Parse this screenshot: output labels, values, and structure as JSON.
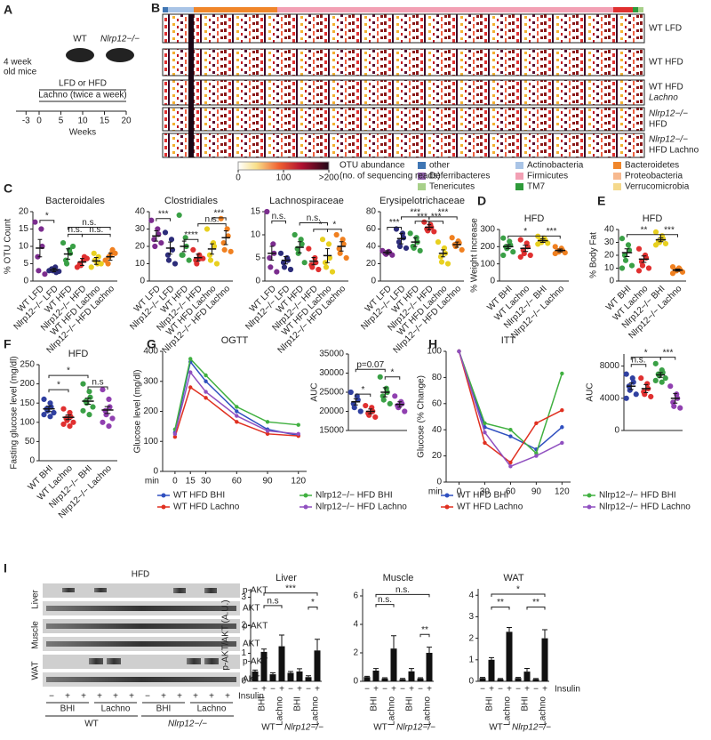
{
  "panel_labels": [
    "A",
    "B",
    "C",
    "D",
    "E",
    "F",
    "G",
    "H",
    "I"
  ],
  "diagram": {
    "age": [
      "4 week",
      "old mice"
    ],
    "strains": [
      "WT",
      "Nlrp12−/−"
    ],
    "diet": "LFD or HFD",
    "treatment": "Lachno (twice a week)",
    "weeks": [
      -3,
      0,
      5,
      10,
      15,
      20
    ],
    "axis_label": "Weeks"
  },
  "heatmap": {
    "rows": [
      [
        "WT LFD"
      ],
      [
        "WT HFD"
      ],
      [
        "WT HFD",
        "Lachno"
      ],
      [
        "Nlrp12−/−",
        "HFD"
      ],
      [
        "Nlrp12−/−",
        "HFD Lachno"
      ]
    ],
    "legend": [
      {
        "name": "other",
        "color": "#3f76b4"
      },
      {
        "name": "Deferribacteres",
        "color": "#8e5ea8"
      },
      {
        "name": "Tenericutes",
        "color": "#a8d08a"
      },
      {
        "name": "Actinobacteria",
        "color": "#a9c4e6"
      },
      {
        "name": "Firmicutes",
        "color": "#f2a0b4"
      },
      {
        "name": "TM7",
        "color": "#2e9a3a"
      },
      {
        "name": "Bacteroidetes",
        "color": "#f0862a"
      },
      {
        "name": "Proteobacteria",
        "color": "#f7b98f"
      },
      {
        "name": "Verrucomicrobia",
        "color": "#f5d98c"
      }
    ],
    "scale_title": "OTU abundance",
    "scale_subtitle": "(no. of sequencing reads)",
    "scale_ticks": [
      0,
      100,
      {
        "value": 200,
        "label": ">200"
      }
    ]
  },
  "blot": {
    "title": "HFD",
    "tissues": [
      "Liver",
      "Muscle",
      "WAT"
    ],
    "bands": [
      "p-AKT",
      "AKT"
    ],
    "insulin": [
      "−",
      "+",
      "+",
      "+",
      "+",
      "+",
      "−",
      "+",
      "+",
      "+",
      "+",
      "+"
    ],
    "treatments": [
      "BHI",
      "Lachno",
      "BHI",
      "Lachno"
    ],
    "genotypes": [
      "WT",
      "Nlrp12−/−"
    ],
    "x_label": "Insulin"
  },
  "chart_data": [
    {
      "type": "dotplot",
      "title": "Bacteroidales",
      "y_label": "% OTU Count",
      "categories": [
        "WT LFD",
        "Nlrp12−/− LFD",
        "WT HFD",
        "Nlrp12−/− HFD",
        "WT HFD Lachno",
        "Nlrp12−/− HFD Lachno"
      ],
      "colors": [
        "#7b2d8e",
        "#2d2d7a",
        "#3aa046",
        "#e03030",
        "#e8d020",
        "#f08020"
      ],
      "values": [
        9.5,
        3.2,
        7.8,
        5.5,
        5.8,
        7
      ],
      "errors": [
        2.5,
        0.5,
        1.5,
        1,
        1,
        1
      ],
      "points": [
        [
          17,
          15,
          10,
          7,
          3,
          2
        ],
        [
          3,
          4,
          2.5,
          3.5,
          3,
          2.8
        ],
        [
          11,
          9,
          8,
          6,
          5,
          10
        ],
        [
          4,
          6,
          7,
          5,
          4.5,
          6.5
        ],
        [
          4,
          5,
          7,
          8,
          6,
          5
        ],
        [
          6,
          8,
          9,
          5,
          7,
          8
        ]
      ],
      "ylim": [
        0,
        20
      ],
      "yticks": [
        0,
        5,
        10,
        15,
        20
      ],
      "annotations": [
        "*",
        "n.s.",
        "n.s.",
        "n.s."
      ]
    },
    {
      "type": "dotplot",
      "title": "Clostridiales",
      "categories": [
        "WT LFD",
        "Nlrp12−/− LFD",
        "WT HFD",
        "Nlrp12−/− HFD",
        "WT HFD Lachno",
        "Nlrp12−/− HFD Lachno"
      ],
      "colors": [
        "#7b2d8e",
        "#2d2d7a",
        "#3aa046",
        "#e03030",
        "#e8d020",
        "#f08020"
      ],
      "values": [
        26,
        19,
        20,
        13.5,
        18.5,
        25
      ],
      "errors": [
        3,
        3.5,
        3,
        2,
        3,
        4
      ],
      "points": [
        [
          35,
          30,
          27,
          24,
          20,
          22
        ],
        [
          28,
          24,
          18,
          15,
          12,
          10
        ],
        [
          38,
          25,
          20,
          15,
          15,
          12
        ],
        [
          18,
          15,
          13,
          12,
          10,
          13
        ],
        [
          30,
          22,
          20,
          15,
          12,
          10
        ],
        [
          36,
          30,
          26,
          22,
          18,
          17
        ]
      ],
      "ylim": [
        0,
        40
      ],
      "yticks": [
        0,
        10,
        20,
        30,
        40
      ],
      "annotations": [
        "***",
        "****",
        "n.s.",
        "***"
      ]
    },
    {
      "type": "dotplot",
      "title": "Lachnospiraceae",
      "categories": [
        "WT LFD",
        "Nlrp12−/− LFD",
        "WT HFD",
        "Nlrp12−/− HFD",
        "WT HFD Lachno",
        "Nlrp12−/− HFD Lachno"
      ],
      "colors": [
        "#7b2d8e",
        "#2d2d7a",
        "#3aa046",
        "#e03030",
        "#e8d020",
        "#f08020"
      ],
      "values": [
        6,
        4.5,
        7.3,
        4.3,
        5.5,
        7.5
      ],
      "errors": [
        1.5,
        0.8,
        1.2,
        0.8,
        1.5,
        1
      ],
      "points": [
        [
          15,
          8,
          6,
          5,
          3,
          2
        ],
        [
          6,
          5,
          4.5,
          4,
          3,
          2.5
        ],
        [
          10,
          9,
          8,
          7,
          6,
          4
        ],
        [
          7,
          5,
          4,
          3.5,
          3,
          2.5
        ],
        [
          9,
          8,
          5,
          4,
          3,
          2
        ],
        [
          10,
          9,
          8,
          7,
          6,
          5
        ]
      ],
      "ylim": [
        0,
        15
      ],
      "yticks": [
        0,
        5,
        10,
        15
      ],
      "annotations": [
        "n.s.",
        "n.s.",
        "*",
        "*"
      ]
    },
    {
      "type": "dotplot",
      "title": "Erysipelotrichaceae",
      "categories": [
        "WT LFD",
        "Nlrp12−/− LFD",
        "WT HFD",
        "Nlrp12−/− HFD",
        "WT HFD Lachno",
        "Nlrp12−/− HFD Lachno"
      ],
      "colors": [
        "#7b2d8e",
        "#2d2d7a",
        "#3aa046",
        "#e03030",
        "#e8d020",
        "#f08020"
      ],
      "values": [
        33,
        49,
        45,
        62,
        32,
        42
      ],
      "errors": [
        2,
        6,
        5,
        3,
        4,
        3
      ],
      "points": [
        [
          35,
          34,
          33,
          32,
          31,
          30
        ],
        [
          60,
          55,
          50,
          45,
          40,
          38
        ],
        [
          55,
          50,
          45,
          40,
          38,
          35
        ],
        [
          68,
          65,
          62,
          60,
          58,
          57
        ],
        [
          45,
          38,
          32,
          28,
          22,
          20
        ],
        [
          50,
          46,
          44,
          42,
          40,
          36
        ]
      ],
      "ylim": [
        0,
        80
      ],
      "yticks": [
        0,
        20,
        40,
        60,
        80
      ],
      "annotations": [
        "***",
        "***",
        "***",
        "***",
        "***"
      ]
    },
    {
      "type": "dotplot",
      "title": "HFD",
      "y_label": "% Weight Increase",
      "categories": [
        "WT BHI",
        "WT Lachno",
        "Nlrp12−/− BHI",
        "Nlrp12−/− Lachno"
      ],
      "colors": [
        "#3aa046",
        "#e03030",
        "#e8d020",
        "#f08020"
      ],
      "values": [
        200,
        190,
        235,
        178
      ],
      "errors": [
        12,
        18,
        10,
        8
      ],
      "points": [
        [
          250,
          230,
          210,
          200,
          190,
          170,
          150
        ],
        [
          240,
          220,
          200,
          180,
          160,
          150,
          140
        ],
        [
          260,
          250,
          240,
          235,
          225,
          220,
          215
        ],
        [
          200,
          190,
          180,
          175,
          170,
          165,
          160
        ]
      ],
      "ylim": [
        0,
        300
      ],
      "yticks": [
        0,
        100,
        200,
        300
      ],
      "annotations": [
        "*",
        "***"
      ]
    },
    {
      "type": "dotplot",
      "title": "HFD",
      "y_label": "% Body Fat",
      "categories": [
        "WT BHI",
        "WT Lachno",
        "Nlrp12−/− BHI",
        "Nlrp12−/− Lachno"
      ],
      "colors": [
        "#3aa046",
        "#e03030",
        "#e8d020",
        "#f08020"
      ],
      "values": [
        22,
        17,
        32,
        8.5
      ],
      "errors": [
        3,
        2.5,
        1.5,
        0.8
      ],
      "points": [
        [
          33,
          28,
          24,
          20,
          16,
          12,
          10
        ],
        [
          25,
          20,
          18,
          15,
          12,
          10,
          8
        ],
        [
          38,
          35,
          33,
          31,
          30,
          29,
          28
        ],
        [
          11,
          10,
          9,
          8.5,
          8,
          7,
          6
        ]
      ],
      "ylim": [
        0,
        40
      ],
      "yticks": [
        0,
        10,
        20,
        30,
        40
      ],
      "annotations": [
        "**",
        "***"
      ]
    },
    {
      "type": "dotplot",
      "title": "HFD",
      "y_label": "Fasting glucose level (mg/dl)",
      "categories": [
        "WT BHI",
        "WT Lachno",
        "Nlrp12−/− BHI",
        "Nlrp12−/− Lachno"
      ],
      "colors": [
        "#3040a0",
        "#e03030",
        "#3aa046",
        "#9040b0"
      ],
      "values": [
        135,
        113,
        155,
        132
      ],
      "errors": [
        7,
        6,
        8,
        9
      ],
      "points": [
        [
          160,
          150,
          140,
          135,
          130,
          125,
          120,
          115
        ],
        [
          135,
          125,
          115,
          110,
          105,
          100,
          95,
          90
        ],
        [
          200,
          180,
          165,
          155,
          150,
          140,
          130,
          120
        ],
        [
          185,
          160,
          140,
          130,
          120,
          110,
          100,
          90
        ]
      ],
      "ylim": [
        0,
        250
      ],
      "yticks": [
        0,
        50,
        100,
        150,
        200,
        250
      ],
      "annotations": [
        "*",
        "*",
        "n.s"
      ]
    },
    {
      "type": "line",
      "title": "OGTT",
      "y_label": "Glucose level (mg/dl)",
      "x_label": "min",
      "x": [
        0,
        15,
        30,
        60,
        90,
        120
      ],
      "xlim": [
        -12,
        128
      ],
      "xticks": [
        0,
        15,
        30,
        60,
        90,
        120
      ],
      "ylim": [
        0,
        400
      ],
      "yticks": [
        0,
        100,
        200,
        300,
        400
      ],
      "series": [
        {
          "name": "WT HFD BHI",
          "color": "#3050c0",
          "values": [
            130,
            365,
            300,
            200,
            140,
            120
          ]
        },
        {
          "name": "Nlrp12−/− HFD BHI",
          "color": "#40b040",
          "values": [
            140,
            375,
            320,
            215,
            165,
            155
          ]
        },
        {
          "name": "WT HFD Lachno",
          "color": "#e03020",
          "values": [
            115,
            280,
            245,
            165,
            125,
            118
          ]
        },
        {
          "name": "Nlrp12−/− HFD Lachno",
          "color": "#9050c0",
          "values": [
            125,
            330,
            265,
            185,
            135,
            125
          ]
        }
      ]
    },
    {
      "type": "dotplot",
      "y_label": "AUC",
      "categories": [
        null,
        null,
        null,
        null
      ],
      "colors": [
        "#3040a0",
        "#e03030",
        "#3aa046",
        "#9040b0"
      ],
      "values": [
        22500,
        20000,
        25000,
        21800
      ],
      "errors": [
        800,
        600,
        1200,
        700
      ],
      "points": [
        [
          25000,
          24000,
          23000,
          22000,
          21000,
          20000
        ],
        [
          21500,
          21000,
          20000,
          19500,
          19000,
          18500
        ],
        [
          29000,
          26000,
          25000,
          24000,
          23000,
          22000
        ],
        [
          24000,
          22500,
          22000,
          21500,
          21000,
          20000
        ]
      ],
      "ylim": [
        15000,
        35000
      ],
      "yticks": [
        15000,
        20000,
        25000,
        30000,
        35000
      ],
      "annotations": [
        "*",
        "p=0.07",
        "*"
      ]
    },
    {
      "type": "line",
      "title": "ITT",
      "y_label": "Glucose (% Change)",
      "x_label": "min",
      "x": [
        0,
        30,
        60,
        90,
        120
      ],
      "xlim": [
        -15,
        130
      ],
      "xticks": [
        0,
        30,
        60,
        90,
        120
      ],
      "ylim": [
        0,
        100
      ],
      "yticks": [
        0,
        20,
        40,
        60,
        80,
        100
      ],
      "series": [
        {
          "name": "WT HFD BHI",
          "color": "#3050c0",
          "values": [
            100,
            42,
            35,
            25,
            42
          ]
        },
        {
          "name": "Nlrp12−/− HFD BHI",
          "color": "#40b040",
          "values": [
            100,
            45,
            40,
            22,
            83
          ]
        },
        {
          "name": "WT HFD Lachno",
          "color": "#e03020",
          "values": [
            100,
            30,
            15,
            45,
            55
          ]
        },
        {
          "name": "Nlrp12−/− HFD Lachno",
          "color": "#9050c0",
          "values": [
            100,
            38,
            12,
            20,
            30
          ]
        }
      ]
    },
    {
      "type": "dotplot",
      "y_label": "AUC",
      "categories": [
        null,
        null,
        null,
        null
      ],
      "colors": [
        "#3040a0",
        "#e03030",
        "#3aa046",
        "#9040b0"
      ],
      "values": [
        5500,
        5200,
        6900,
        4000
      ],
      "errors": [
        400,
        500,
        300,
        600
      ],
      "points": [
        [
          7000,
          6500,
          6000,
          5500,
          5000,
          4500,
          4000
        ],
        [
          6500,
          5800,
          5200,
          4800,
          4500,
          4200
        ],
        [
          8300,
          7500,
          7200,
          7000,
          6800,
          6500,
          6200,
          6000
        ],
        [
          5500,
          4500,
          4000,
          3500,
          3000,
          2800
        ]
      ],
      "ylim": [
        0,
        9500
      ],
      "yticks": [
        0,
        4000,
        8000
      ],
      "annotations": [
        "n.s.",
        "*",
        "***"
      ]
    },
    {
      "type": "bar",
      "title": "Liver",
      "y_label": "p-AKT/AKT (A.U.)",
      "categories": [
        "−",
        "+",
        "−",
        "+",
        "−",
        "+",
        "−",
        "+"
      ],
      "groups": [
        "BHI",
        "Lachno",
        "BHI",
        "Lachno"
      ],
      "genotypes": [
        "WT",
        "Nlrp12−/−"
      ],
      "values": [
        0.35,
        1.05,
        0.25,
        1.25,
        0.3,
        0.35,
        0.15,
        1.1
      ],
      "errors": [
        0.05,
        0.1,
        0.05,
        0.4,
        0.05,
        0.1,
        0.05,
        0.4
      ],
      "color": "#111111",
      "ylim": [
        0,
        3.3
      ],
      "yticks": [
        0,
        1,
        2,
        3
      ],
      "annotations": [
        "***",
        "n.s",
        "*"
      ]
    },
    {
      "type": "bar",
      "title": "Muscle",
      "categories": [
        "−",
        "+",
        "−",
        "+",
        "−",
        "+",
        "−",
        "+"
      ],
      "groups": [
        "BHI",
        "Lachno",
        "BHI",
        "Lachno"
      ],
      "genotypes": [
        "WT",
        "Nlrp12−/−"
      ],
      "values": [
        0.3,
        0.75,
        0.2,
        2.3,
        0.15,
        0.7,
        0.2,
        2.0
      ],
      "errors": [
        0.05,
        0.15,
        0.05,
        0.9,
        0.05,
        0.2,
        0.05,
        0.4
      ],
      "color": "#111111",
      "ylim": [
        0,
        6.5
      ],
      "yticks": [
        0,
        2,
        4,
        6
      ],
      "annotations": [
        "n.s.",
        "n.s.",
        "**"
      ]
    },
    {
      "type": "bar",
      "title": "WAT",
      "x_label": "Insulin",
      "categories": [
        "−",
        "+",
        "−",
        "+",
        "−",
        "+",
        "−",
        "+"
      ],
      "groups": [
        "BHI",
        "Lachno",
        "BHI",
        "Lachno"
      ],
      "genotypes": [
        "WT",
        "Nlrp12−/−"
      ],
      "values": [
        0.15,
        1.0,
        0.1,
        2.3,
        0.15,
        0.45,
        0.1,
        2.0
      ],
      "errors": [
        0.03,
        0.1,
        0.03,
        0.2,
        0.03,
        0.15,
        0.03,
        0.4
      ],
      "color": "#111111",
      "ylim": [
        0,
        4.3
      ],
      "yticks": [
        0,
        1,
        2,
        3,
        4
      ],
      "annotations": [
        "*",
        "**",
        "**"
      ]
    }
  ]
}
